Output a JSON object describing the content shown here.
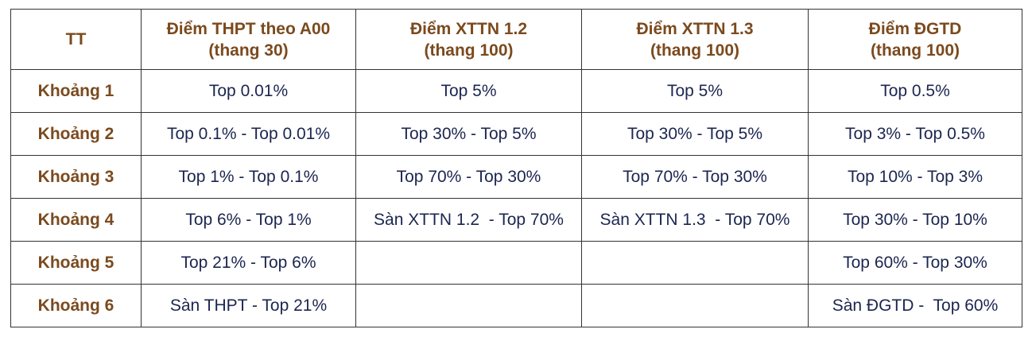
{
  "table": {
    "headers": [
      {
        "line1": "TT",
        "line2": ""
      },
      {
        "line1": "Điểm THPT theo A00",
        "line2": "(thang 30)"
      },
      {
        "line1": "Điểm XTTN 1.2",
        "line2": "(thang 100)"
      },
      {
        "line1": "Điểm XTTN 1.3",
        "line2": "(thang 100)"
      },
      {
        "line1": "Điểm ĐGTD",
        "line2": "(thang 100)"
      }
    ],
    "rows": [
      {
        "label": "Khoảng 1",
        "cells": [
          "Top 0.01%",
          "Top 5%",
          "Top 5%",
          "Top 0.5%"
        ]
      },
      {
        "label": "Khoảng 2",
        "cells": [
          "Top 0.1% - Top 0.01%",
          "Top 30% - Top 5%",
          "Top 30% - Top 5%",
          "Top 3% - Top 0.5%"
        ]
      },
      {
        "label": "Khoảng 3",
        "cells": [
          "Top 1% - Top 0.1%",
          "Top 70% - Top 30%",
          "Top 70% - Top 30%",
          "Top 10% - Top 3%"
        ]
      },
      {
        "label": "Khoảng 4",
        "cells": [
          "Top 6% - Top 1%",
          "Sàn XTTN 1.2  - Top 70%",
          "Sàn XTTN 1.3  - Top 70%",
          "Top 30% - Top 10%"
        ]
      },
      {
        "label": "Khoảng 5",
        "cells": [
          "Top 21% - Top 6%",
          "",
          "",
          "Top 60% - Top 30%"
        ]
      },
      {
        "label": "Khoảng 6",
        "cells": [
          "Sàn THPT - Top 21%",
          "",
          "",
          "Sàn ĐGTD -  Top 60%"
        ]
      }
    ]
  },
  "colors": {
    "header_text": "#7b4a1e",
    "body_text": "#1b2550",
    "border": "#333333"
  }
}
